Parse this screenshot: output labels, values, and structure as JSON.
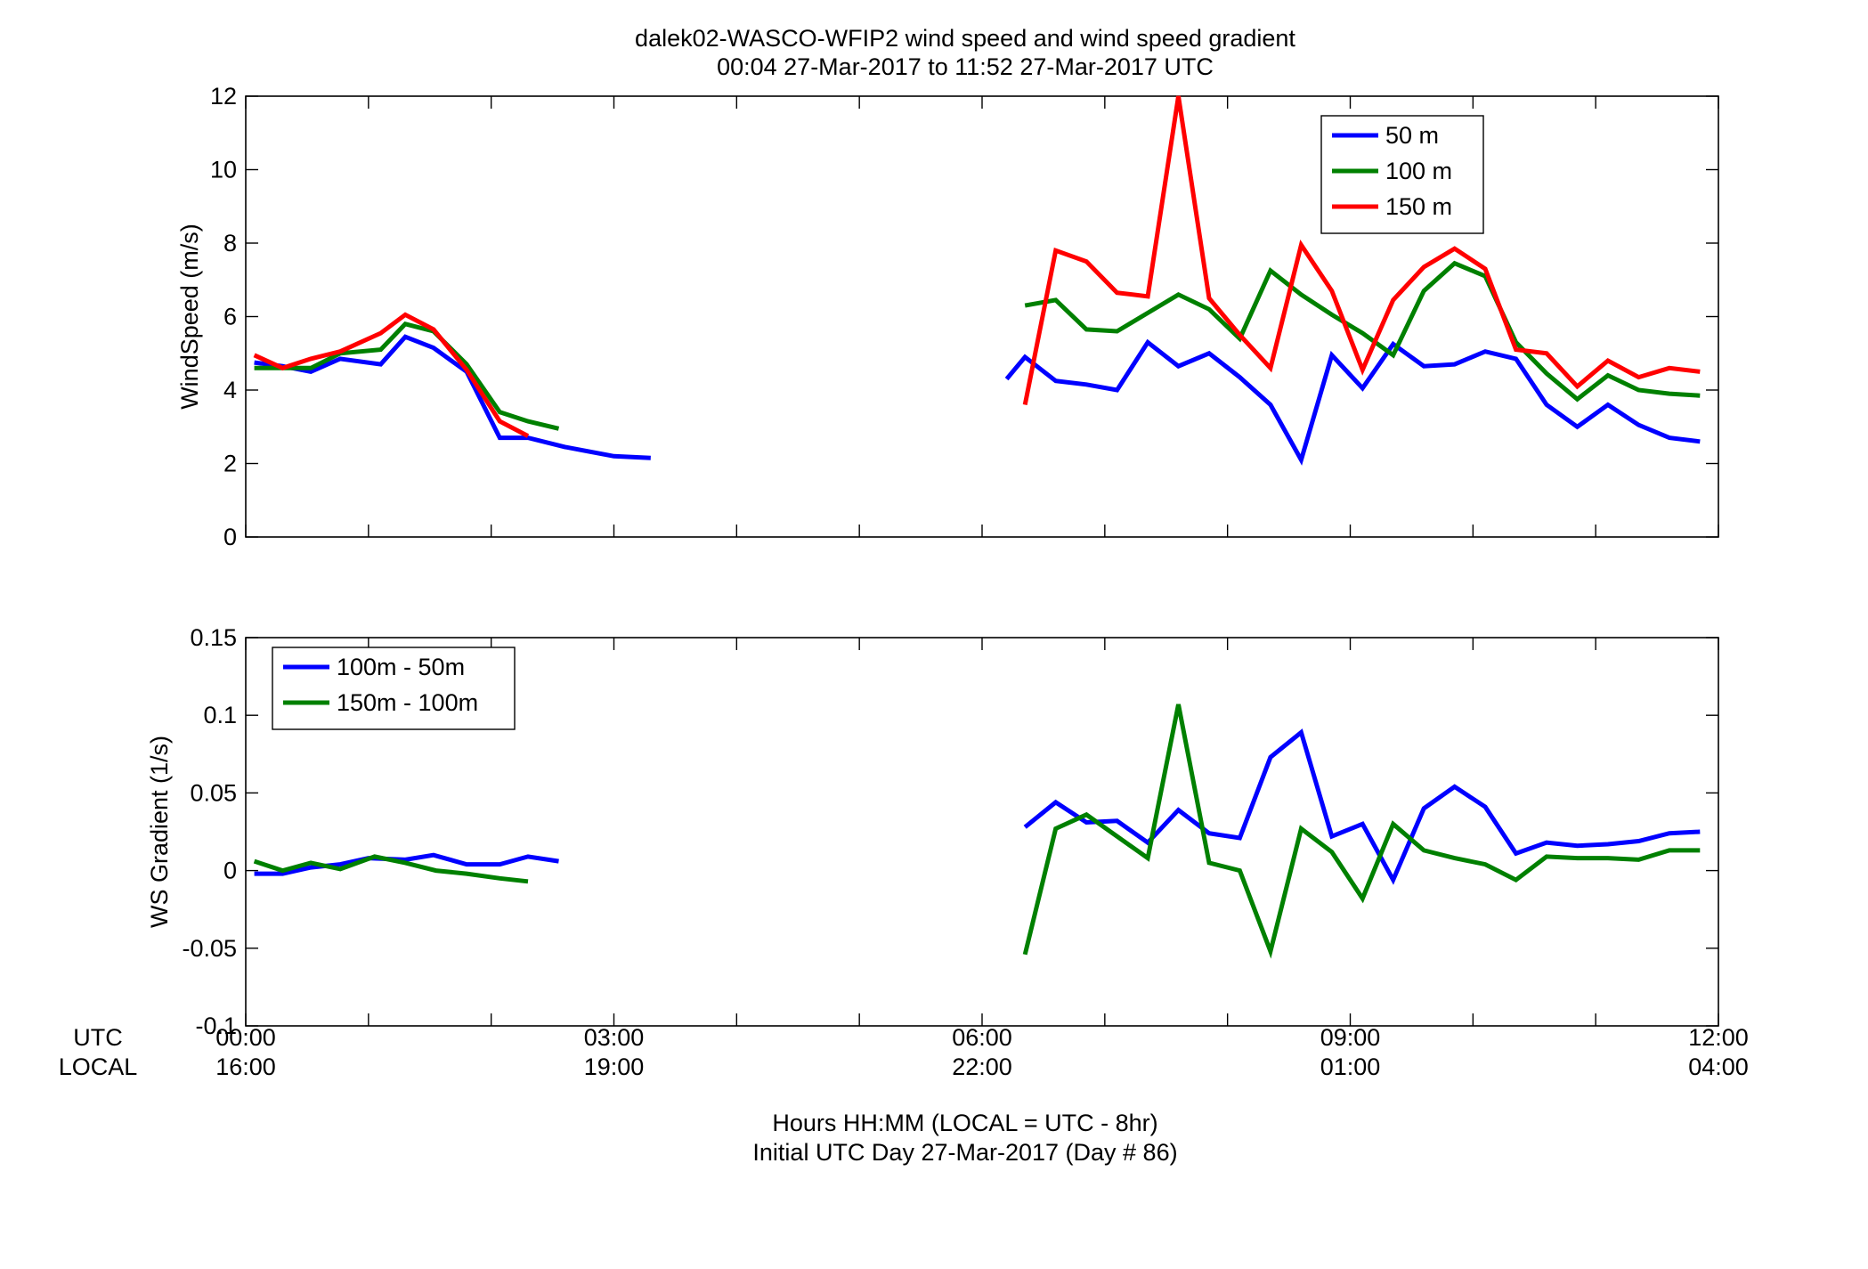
{
  "figure": {
    "title_line1": "dalek02-WASCO-WFIP2  wind speed and wind speed gradient",
    "title_line2": "00:04 27-Mar-2017 to 11:52 27-Mar-2017  UTC",
    "row_label_utc": "UTC",
    "row_label_local": "LOCAL",
    "xlabel_line1": "Hours HH:MM  (LOCAL = UTC - 8hr)",
    "xlabel_line2": "Initial UTC Day 27-Mar-2017 (Day # 86)",
    "x_utc_ticks": [
      "00:00",
      "03:00",
      "06:00",
      "09:00",
      "12:00"
    ],
    "x_local_ticks": [
      "16:00",
      "19:00",
      "22:00",
      "01:00",
      "04:00"
    ]
  },
  "chart_data": [
    {
      "type": "line",
      "ylabel": "WindSpeed (m/s)",
      "xlim": [
        0,
        12
      ],
      "ylim": [
        0,
        12
      ],
      "yticks": [
        0,
        2,
        4,
        6,
        8,
        10,
        12
      ],
      "ytick_labels": [
        "0",
        "2",
        "4",
        "6",
        "8",
        "10",
        "12"
      ],
      "legend_position": "top-right",
      "series": [
        {
          "name": "50 m",
          "color": "#0000ff",
          "segments": [
            {
              "x": [
                0.07,
                0.3,
                0.53,
                0.77,
                1.1,
                1.3,
                1.53,
                1.8,
                2.07,
                2.3,
                2.6,
                3.0,
                3.3
              ],
              "y": [
                4.75,
                4.65,
                4.5,
                4.85,
                4.7,
                5.45,
                5.15,
                4.5,
                2.7,
                2.7,
                2.45,
                2.2,
                2.15
              ]
            },
            {
              "x": [
                6.2,
                6.35,
                6.6,
                6.85,
                7.1,
                7.35,
                7.6,
                7.85,
                8.1,
                8.35,
                8.6,
                8.85,
                9.1,
                9.35,
                9.6,
                9.85,
                10.1,
                10.35,
                10.6,
                10.85,
                11.1,
                11.35,
                11.6,
                11.85
              ],
              "y": [
                4.3,
                4.9,
                4.25,
                4.15,
                4.0,
                5.3,
                4.65,
                5.0,
                4.35,
                3.6,
                2.1,
                4.95,
                4.05,
                5.25,
                4.65,
                4.7,
                5.05,
                4.85,
                3.6,
                3.0,
                3.6,
                3.05,
                2.7,
                2.6
              ]
            }
          ]
        },
        {
          "name": "100 m",
          "color": "#008000",
          "segments": [
            {
              "x": [
                0.07,
                0.3,
                0.53,
                0.77,
                1.1,
                1.3,
                1.53,
                1.8,
                2.07,
                2.3,
                2.55
              ],
              "y": [
                4.6,
                4.6,
                4.6,
                5.0,
                5.1,
                5.8,
                5.6,
                4.7,
                3.4,
                3.15,
                2.95
              ]
            },
            {
              "x": [
                6.35,
                6.6,
                6.85,
                7.1,
                7.35,
                7.6,
                7.85,
                8.1,
                8.35,
                8.6,
                8.85,
                9.1,
                9.35,
                9.6,
                9.85,
                10.1,
                10.35,
                10.6,
                10.85,
                11.1,
                11.35,
                11.6,
                11.85
              ],
              "y": [
                6.3,
                6.45,
                5.65,
                5.6,
                6.1,
                6.6,
                6.2,
                5.4,
                7.25,
                6.6,
                6.05,
                5.55,
                4.95,
                6.7,
                7.45,
                7.1,
                5.3,
                4.45,
                3.75,
                4.4,
                4.0,
                3.9,
                3.85
              ]
            }
          ]
        },
        {
          "name": "150 m",
          "color": "#ff0000",
          "segments": [
            {
              "x": [
                0.07,
                0.3,
                0.53,
                0.77,
                1.1,
                1.3,
                1.53,
                1.8,
                2.07,
                2.3
              ],
              "y": [
                4.95,
                4.6,
                4.85,
                5.05,
                5.55,
                6.05,
                5.65,
                4.55,
                3.15,
                2.75
              ]
            },
            {
              "x": [
                6.35,
                6.6,
                6.85,
                7.1,
                7.35,
                7.6,
                7.85,
                8.1,
                8.35,
                8.6,
                8.85,
                9.1,
                9.35,
                9.6,
                9.85,
                10.1,
                10.35,
                10.6,
                10.85,
                11.1,
                11.35,
                11.6,
                11.85
              ],
              "y": [
                3.6,
                7.8,
                7.5,
                6.65,
                6.55,
                12.0,
                6.5,
                5.5,
                4.6,
                7.95,
                6.7,
                4.55,
                6.45,
                7.35,
                7.85,
                7.3,
                5.1,
                5.0,
                4.1,
                4.8,
                4.35,
                4.6,
                4.5
              ]
            }
          ]
        }
      ]
    },
    {
      "type": "line",
      "ylabel": "WS Gradient (1/s)",
      "xlim": [
        0,
        12
      ],
      "ylim": [
        -0.1,
        0.15
      ],
      "yticks": [
        -0.1,
        -0.05,
        0,
        0.05,
        0.1,
        0.15
      ],
      "ytick_labels": [
        "-0.1",
        "-0.05",
        "0",
        "0.05",
        "0.1",
        "0.15"
      ],
      "legend_position": "top-left",
      "series": [
        {
          "name": "100m - 50m",
          "color": "#0000ff",
          "segments": [
            {
              "x": [
                0.07,
                0.3,
                0.53,
                0.77,
                1.0,
                1.3,
                1.53,
                1.8,
                2.07,
                2.3,
                2.55
              ],
              "y": [
                -0.002,
                -0.002,
                0.002,
                0.004,
                0.008,
                0.007,
                0.01,
                0.004,
                0.004,
                0.009,
                0.006
              ]
            },
            {
              "x": [
                6.35,
                6.6,
                6.85,
                7.1,
                7.35,
                7.6,
                7.85,
                8.1,
                8.35,
                8.6,
                8.85,
                9.1,
                9.35,
                9.6,
                9.85,
                10.1,
                10.35,
                10.6,
                10.85,
                11.1,
                11.35,
                11.6,
                11.85
              ],
              "y": [
                0.028,
                0.044,
                0.031,
                0.032,
                0.018,
                0.039,
                0.024,
                0.021,
                0.073,
                0.089,
                0.022,
                0.03,
                -0.006,
                0.04,
                0.054,
                0.041,
                0.011,
                0.018,
                0.016,
                0.017,
                0.019,
                0.024,
                0.025
              ]
            }
          ]
        },
        {
          "name": "150m - 100m",
          "color": "#008000",
          "segments": [
            {
              "x": [
                0.07,
                0.3,
                0.53,
                0.77,
                1.05,
                1.3,
                1.55,
                1.8,
                2.07,
                2.3
              ],
              "y": [
                0.006,
                0.0,
                0.005,
                0.001,
                0.009,
                0.005,
                0.0,
                -0.002,
                -0.005,
                -0.007
              ]
            },
            {
              "x": [
                6.35,
                6.6,
                6.85,
                7.1,
                7.35,
                7.6,
                7.85,
                8.1,
                8.35,
                8.6,
                8.85,
                9.1,
                9.35,
                9.6,
                9.85,
                10.1,
                10.35,
                10.6,
                10.85,
                11.1,
                11.35,
                11.6,
                11.85
              ],
              "y": [
                -0.054,
                0.027,
                0.036,
                0.022,
                0.008,
                0.107,
                0.005,
                0.0,
                -0.052,
                0.027,
                0.012,
                -0.018,
                0.03,
                0.013,
                0.008,
                0.004,
                -0.006,
                0.009,
                0.008,
                0.008,
                0.007,
                0.013,
                0.013
              ]
            }
          ]
        }
      ]
    }
  ]
}
